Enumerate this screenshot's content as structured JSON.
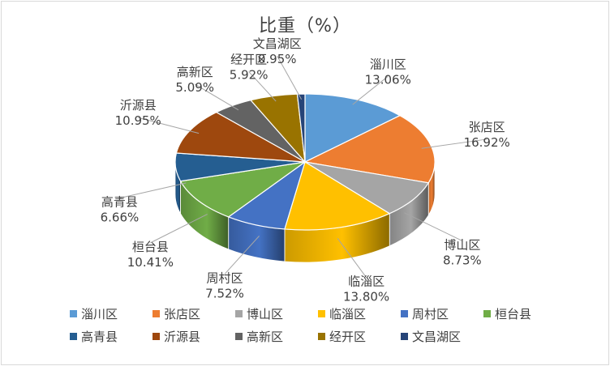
{
  "chart_data": {
    "type": "pie",
    "title": "比重（%）",
    "categories": [
      "淄川区",
      "张店区",
      "博山区",
      "临淄区",
      "周村区",
      "桓台县",
      "高青县",
      "沂源县",
      "高新区",
      "经开区",
      "文昌湖区"
    ],
    "values": [
      13.06,
      16.92,
      8.73,
      13.8,
      7.52,
      10.41,
      6.66,
      10.95,
      5.09,
      5.92,
      0.95
    ],
    "value_labels": [
      "13.06%",
      "16.92%",
      "8.73%",
      "13.80%",
      "7.52%",
      "10.41%",
      "6.66%",
      "10.95%",
      "5.09%",
      "5.92%",
      "0.95%"
    ],
    "colors": [
      "#5b9bd5",
      "#ed7d31",
      "#a5a5a5",
      "#ffc000",
      "#4472c4",
      "#70ad47",
      "#255e91",
      "#9e480e",
      "#636363",
      "#997300",
      "#264478"
    ],
    "legend_position": "bottom",
    "style": "3d"
  }
}
